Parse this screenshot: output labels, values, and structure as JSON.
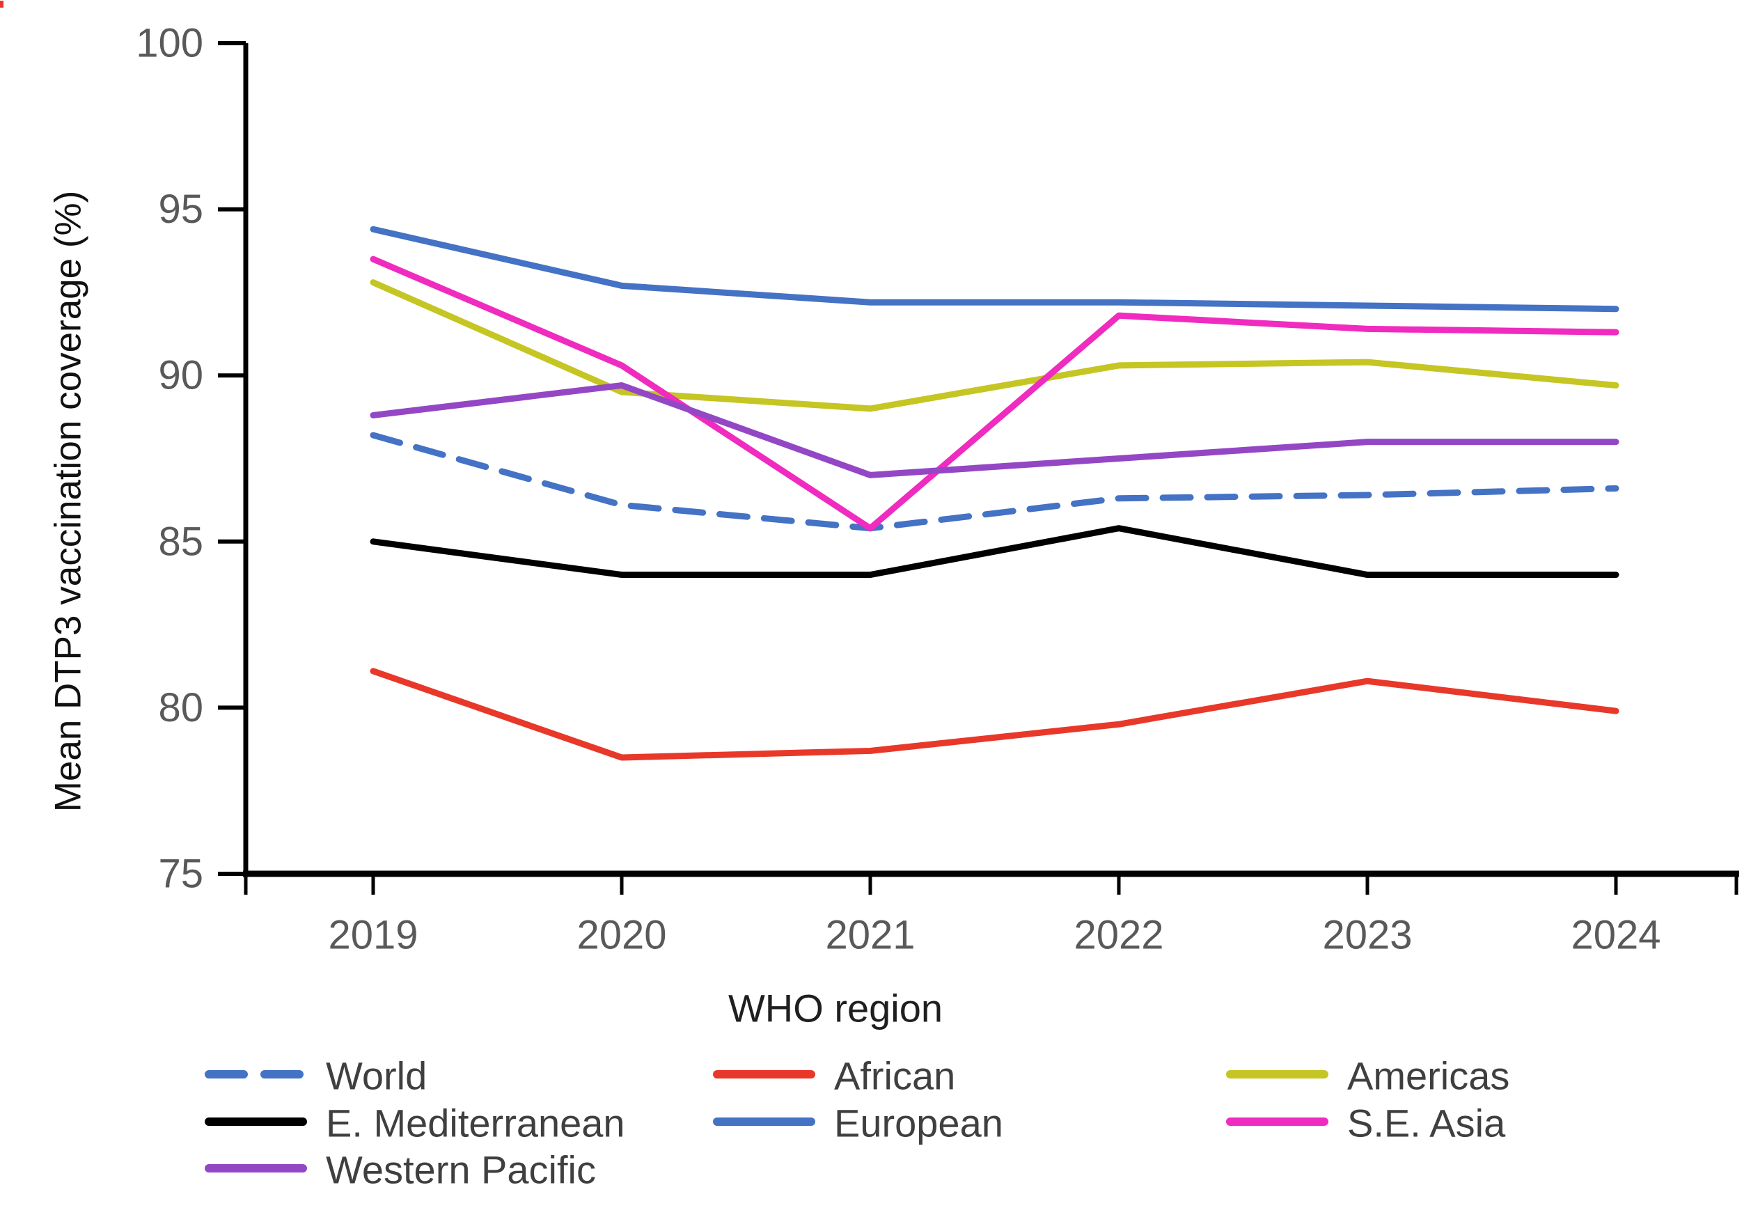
{
  "chart_data": {
    "type": "line",
    "title": "",
    "xlabel": "WHO region",
    "ylabel": "Mean DTP3 vaccination coverage (%)",
    "x": [
      "2019",
      "2020",
      "2021",
      "2022",
      "2023",
      "2024"
    ],
    "ylim": [
      75,
      100
    ],
    "yticks": [
      75,
      80,
      85,
      90,
      95,
      100
    ],
    "grid": "off",
    "legend_position": "bottom",
    "axis_color": "#000000",
    "tick_label_color": "#595959",
    "series": [
      {
        "name": "World",
        "color": "#4472C4",
        "dash": true,
        "values": [
          88.2,
          86.1,
          85.4,
          86.3,
          86.4,
          86.6
        ]
      },
      {
        "name": "African",
        "color": "#E8382A",
        "dash": false,
        "values": [
          81.1,
          78.5,
          78.7,
          79.5,
          80.8,
          79.9
        ]
      },
      {
        "name": "Americas",
        "color": "#C5C523",
        "dash": false,
        "values": [
          92.8,
          89.5,
          89.0,
          90.3,
          90.4,
          89.7
        ]
      },
      {
        "name": "E. Mediterranean",
        "color": "#000000",
        "dash": false,
        "values": [
          85.0,
          84.0,
          84.0,
          85.4,
          84.0,
          84.0
        ]
      },
      {
        "name": "European",
        "color": "#4472C4",
        "dash": false,
        "values": [
          94.4,
          92.7,
          92.2,
          92.2,
          92.1,
          92.0
        ]
      },
      {
        "name": "S.E. Asia",
        "color": "#F02BC0",
        "dash": false,
        "values": [
          93.5,
          90.3,
          85.4,
          91.8,
          91.4,
          91.3
        ]
      },
      {
        "name": "Western Pacific",
        "color": "#9447C4",
        "dash": false,
        "values": [
          88.8,
          89.7,
          87.0,
          87.5,
          88.0,
          88.0
        ]
      }
    ]
  }
}
